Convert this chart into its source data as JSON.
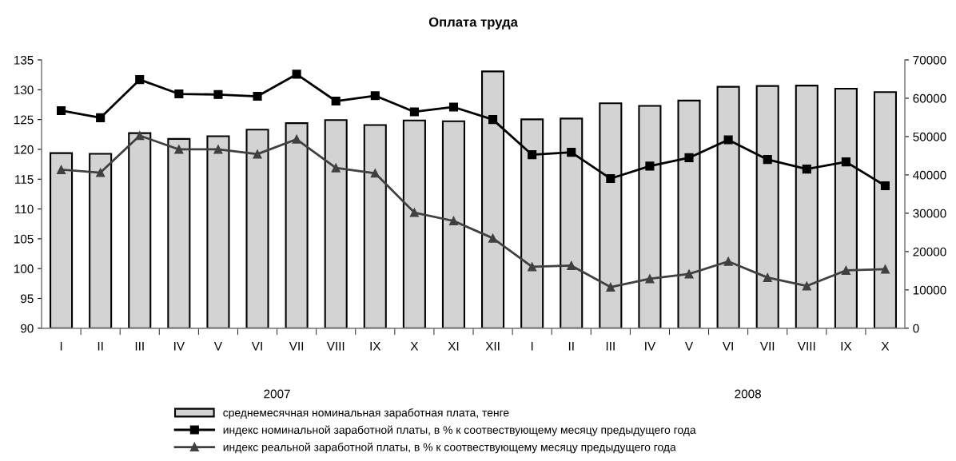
{
  "chart_data": {
    "type": "bar",
    "title": "Оплата труда",
    "categories": [
      "I",
      "II",
      "III",
      "IV",
      "V",
      "VI",
      "VII",
      "VIII",
      "IX",
      "X",
      "XI",
      "XII",
      "I",
      "II",
      "III",
      "IV",
      "V",
      "VI",
      "VII",
      "VIII",
      "IX",
      "X"
    ],
    "series": [
      {
        "name": "среднемесячная номинальная заработная плата, тенге",
        "axis": "y2",
        "color": "#d3d3d3",
        "values": [
          45700,
          45500,
          50900,
          49400,
          50100,
          51800,
          53500,
          54300,
          53000,
          54200,
          54000,
          67000,
          54500,
          54700,
          58700,
          58000,
          59400,
          63000,
          63200,
          63300,
          62500,
          61600
        ]
      },
      {
        "name": "индекс номинальной заработной платы, в % к соотвествующему месяцу предыдущего года",
        "type": "line",
        "marker": "square",
        "color": "#000000",
        "values": [
          126.5,
          125.3,
          131.7,
          129.3,
          129.2,
          128.9,
          132.6,
          128.1,
          129.0,
          126.3,
          127.1,
          125.0,
          119.1,
          119.5,
          115.1,
          117.2,
          118.6,
          121.6,
          118.3,
          116.7,
          117.9,
          113.9
        ]
      },
      {
        "name": "индекс реальной заработной платы, в % к соотвествующему месяцу предыдущего года",
        "type": "line",
        "marker": "triangle",
        "color": "#404040",
        "values": [
          116.6,
          116.1,
          122.3,
          120.0,
          120.0,
          119.2,
          121.7,
          116.9,
          116.0,
          109.4,
          108.0,
          105.1,
          100.3,
          100.5,
          96.9,
          98.3,
          99.1,
          101.2,
          98.5,
          97.1,
          99.7,
          99.9
        ]
      }
    ],
    "ylim": [
      90,
      135
    ],
    "yticks": [
      90,
      95,
      100,
      105,
      110,
      115,
      120,
      125,
      130,
      135
    ],
    "y2lim": [
      0,
      70000
    ],
    "y2ticks": [
      0,
      10000,
      20000,
      30000,
      40000,
      50000,
      60000,
      70000
    ],
    "annotations": [
      "2007",
      "2008"
    ],
    "grid": false,
    "legend": "bottom"
  }
}
